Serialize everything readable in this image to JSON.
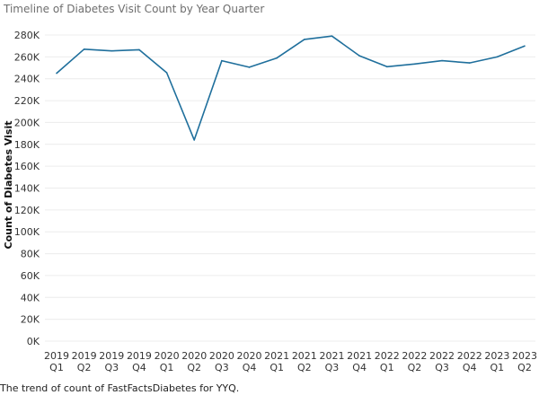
{
  "page": {
    "title": "Timeline of Diabetes Visit Count by Year Quarter",
    "caption": "The trend of count of FastFactsDiabetes for YYQ."
  },
  "chart_data": {
    "type": "line",
    "title": "Timeline of Diabetes Visit Count by Year Quarter",
    "xlabel": "",
    "ylabel": "Count of Diabetes Visit",
    "ylim": [
      0,
      280000
    ],
    "y_ticks": [
      {
        "value": 0,
        "label": "0K"
      },
      {
        "value": 20000,
        "label": "20K"
      },
      {
        "value": 40000,
        "label": "40K"
      },
      {
        "value": 60000,
        "label": "60K"
      },
      {
        "value": 80000,
        "label": "80K"
      },
      {
        "value": 100000,
        "label": "100K"
      },
      {
        "value": 120000,
        "label": "120K"
      },
      {
        "value": 140000,
        "label": "140K"
      },
      {
        "value": 160000,
        "label": "160K"
      },
      {
        "value": 180000,
        "label": "180K"
      },
      {
        "value": 200000,
        "label": "200K"
      },
      {
        "value": 220000,
        "label": "220K"
      },
      {
        "value": 240000,
        "label": "240K"
      },
      {
        "value": 260000,
        "label": "260K"
      },
      {
        "value": 280000,
        "label": "280K"
      }
    ],
    "categories": [
      {
        "year": "2019",
        "quarter": "Q1"
      },
      {
        "year": "2019",
        "quarter": "Q2"
      },
      {
        "year": "2019",
        "quarter": "Q3"
      },
      {
        "year": "2019",
        "quarter": "Q4"
      },
      {
        "year": "2020",
        "quarter": "Q1"
      },
      {
        "year": "2020",
        "quarter": "Q2"
      },
      {
        "year": "2020",
        "quarter": "Q3"
      },
      {
        "year": "2020",
        "quarter": "Q4"
      },
      {
        "year": "2021",
        "quarter": "Q1"
      },
      {
        "year": "2021",
        "quarter": "Q2"
      },
      {
        "year": "2021",
        "quarter": "Q3"
      },
      {
        "year": "2021",
        "quarter": "Q4"
      },
      {
        "year": "2022",
        "quarter": "Q1"
      },
      {
        "year": "2022",
        "quarter": "Q2"
      },
      {
        "year": "2022",
        "quarter": "Q3"
      },
      {
        "year": "2022",
        "quarter": "Q4"
      },
      {
        "year": "2023",
        "quarter": "Q1"
      },
      {
        "year": "2023",
        "quarter": "Q2"
      }
    ],
    "series": [
      {
        "color": "#1f6f9c",
        "values": [
          245000,
          267000,
          265500,
          266500,
          245500,
          184000,
          256500,
          250500,
          259000,
          276000,
          279000,
          261000,
          251000,
          253500,
          256500,
          254500,
          260000,
          270000
        ]
      }
    ],
    "grid": true,
    "legend": "none"
  }
}
